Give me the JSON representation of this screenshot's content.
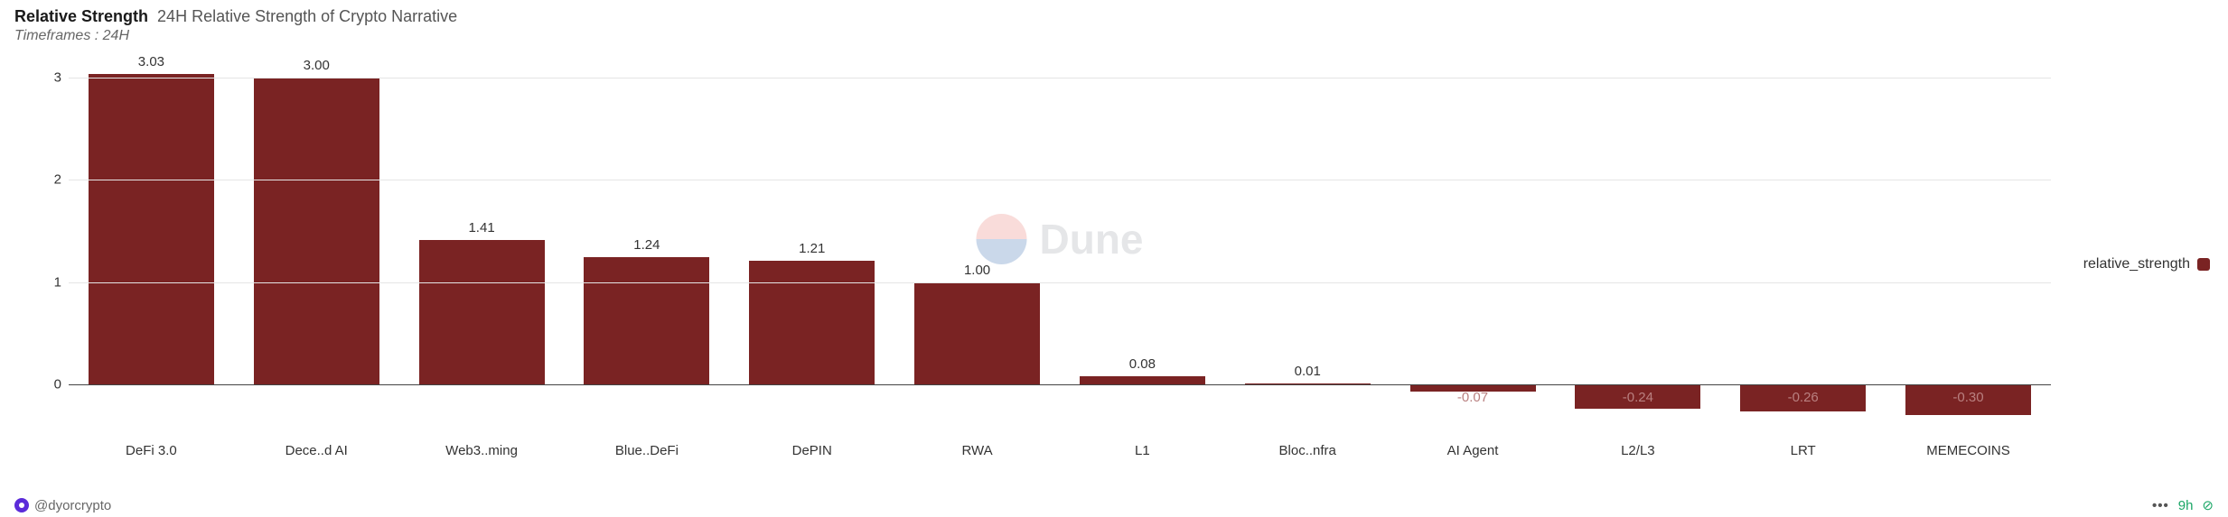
{
  "header": {
    "title": "Relative Strength",
    "subtitle": "24H Relative Strength of Crypto Narrative",
    "timeframes_label": "Timeframes : 24H"
  },
  "chart": {
    "type": "bar",
    "series_name": "relative_strength",
    "bar_color": "#7a2323",
    "grid_color": "#e5e5e5",
    "background_color": "#ffffff",
    "text_color": "#333333",
    "label_fontsize": 15,
    "ylim": [
      -0.5,
      3.2
    ],
    "yticks": [
      0,
      1,
      2,
      3
    ],
    "categories": [
      "DeFi 3.0",
      "Dece..d AI",
      "Web3..ming",
      "Blue..DeFi",
      "DePIN",
      "RWA",
      "L1",
      "Bloc..nfra",
      "AI Agent",
      "L2/L3",
      "LRT",
      "MEMECOINS"
    ],
    "values": [
      3.03,
      3.0,
      1.41,
      1.24,
      1.21,
      1.0,
      0.08,
      0.01,
      -0.07,
      -0.24,
      -0.26,
      -0.3
    ]
  },
  "watermark": {
    "text": "Dune",
    "top_color": "#e8756b",
    "bottom_color": "#3168b0",
    "text_color": "#9aa0a6",
    "fontsize": 46
  },
  "legend": {
    "label": "relative_strength",
    "swatch_color": "#7a2323"
  },
  "footer": {
    "handle": "@dyorcrypto",
    "age": "9h",
    "dots": "•••",
    "check_glyph": "⊘"
  }
}
